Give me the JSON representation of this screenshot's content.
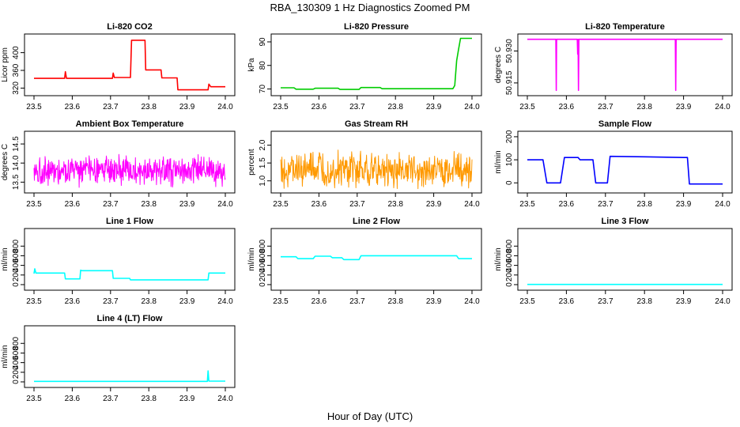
{
  "figure": {
    "title": "RBA_130309  1 Hz Diagnostics Zoomed PM",
    "xlabel": "Hour of Day (UTC)"
  },
  "chart_data": [
    {
      "type": "line",
      "title": "Li-820 CO2",
      "ylabel": "Licor ppm",
      "color": "#ff0000",
      "xlim": [
        23.5,
        24.0
      ],
      "ylim": [
        310,
        435
      ],
      "x_ticks": [
        "23.5",
        "23.6",
        "23.7",
        "23.8",
        "23.9",
        "24.0"
      ],
      "y_ticks": [
        "320",
        "360",
        "400"
      ],
      "series": [
        {
          "points": [
            [
              23.5,
              342
            ],
            [
              23.58,
              342
            ],
            [
              23.582,
              357
            ],
            [
              23.585,
              342
            ],
            [
              23.705,
              342
            ],
            [
              23.707,
              354
            ],
            [
              23.71,
              344
            ],
            [
              23.752,
              344
            ],
            [
              23.755,
              428
            ],
            [
              23.79,
              428
            ],
            [
              23.792,
              361
            ],
            [
              23.832,
              361
            ],
            [
              23.834,
              343
            ],
            [
              23.874,
              343
            ],
            [
              23.876,
              316
            ],
            [
              23.955,
              316
            ],
            [
              23.957,
              329
            ],
            [
              23.962,
              323
            ],
            [
              24.0,
              323
            ]
          ]
        }
      ]
    },
    {
      "type": "line",
      "title": "Li-820 Pressure",
      "ylabel": "kPa",
      "color": "#00cc00",
      "xlim": [
        23.5,
        24.0
      ],
      "ylim": [
        68.5,
        92
      ],
      "x_ticks": [
        "23.5",
        "23.6",
        "23.7",
        "23.8",
        "23.9",
        "24.0"
      ],
      "y_ticks": [
        "70",
        "80",
        "90"
      ],
      "series": [
        {
          "points": [
            [
              23.5,
              70.5
            ],
            [
              23.535,
              70.5
            ],
            [
              23.54,
              69.9
            ],
            [
              23.585,
              69.9
            ],
            [
              23.59,
              70.3
            ],
            [
              23.65,
              70.3
            ],
            [
              23.655,
              69.8
            ],
            [
              23.705,
              69.8
            ],
            [
              23.71,
              70.6
            ],
            [
              23.76,
              70.6
            ],
            [
              23.765,
              70.1
            ],
            [
              23.95,
              70.1
            ],
            [
              23.955,
              71.5
            ],
            [
              23.96,
              82
            ],
            [
              23.965,
              87
            ],
            [
              23.97,
              91.5
            ],
            [
              24.0,
              91.5
            ]
          ]
        }
      ]
    },
    {
      "type": "line",
      "title": "Li-820 Temperature",
      "ylabel": "degrees C",
      "color": "#ff00ff",
      "xlim": [
        23.5,
        24.0
      ],
      "ylim": [
        50.9105,
        50.9365
      ],
      "x_ticks": [
        "23.5",
        "23.6",
        "23.7",
        "23.8",
        "23.9",
        "24.0"
      ],
      "y_ticks": [
        "50.915",
        "50.930"
      ],
      "series": [
        {
          "points": [
            [
              23.5,
              50.9355
            ],
            [
              23.573,
              50.9355
            ],
            [
              23.574,
              50.9115
            ],
            [
              23.575,
              50.9355
            ],
            [
              23.628,
              50.9355
            ],
            [
              23.629,
              50.9285
            ],
            [
              23.63,
              50.9355
            ],
            [
              23.631,
              50.9115
            ],
            [
              23.632,
              50.9355
            ],
            [
              23.879,
              50.9355
            ],
            [
              23.88,
              50.9115
            ],
            [
              23.881,
              50.9355
            ],
            [
              24.0,
              50.9355
            ]
          ]
        }
      ]
    },
    {
      "type": "line",
      "title": "Ambient Box Temperature",
      "ylabel": "degrees C",
      "color": "#ff00ff",
      "xlim": [
        23.5,
        24.0
      ],
      "ylim": [
        13.3,
        14.75
      ],
      "x_ticks": [
        "23.5",
        "23.6",
        "23.7",
        "23.8",
        "23.9",
        "24.0"
      ],
      "y_ticks": [
        "13.5",
        "14.0",
        "14.5"
      ],
      "series": [
        {
          "noise": {
            "base": 13.8,
            "amp": 0.45,
            "n": 500
          }
        }
      ]
    },
    {
      "type": "line",
      "title": "Gas Stream RH",
      "ylabel": "percent",
      "color": "#ff9900",
      "xlim": [
        23.5,
        24.0
      ],
      "ylim": [
        0.75,
        2.3
      ],
      "x_ticks": [
        "23.5",
        "23.6",
        "23.7",
        "23.8",
        "23.9",
        "24.0"
      ],
      "y_ticks": [
        "1.0",
        "1.5",
        "2.0"
      ],
      "series": [
        {
          "noise": {
            "base": 1.3,
            "amp": 0.6,
            "n": 450
          }
        }
      ]
    },
    {
      "type": "line",
      "title": "Sample Flow",
      "ylabel": "ml/min",
      "color": "#0000ff",
      "xlim": [
        23.5,
        24.0
      ],
      "ylim": [
        -30,
        210
      ],
      "x_ticks": [
        "23.5",
        "23.6",
        "23.7",
        "23.8",
        "23.9",
        "24.0"
      ],
      "y_ticks": [
        "0",
        "100",
        "200"
      ],
      "series": [
        {
          "points": [
            [
              23.5,
              100
            ],
            [
              23.54,
              100
            ],
            [
              23.55,
              0
            ],
            [
              23.585,
              0
            ],
            [
              23.595,
              110
            ],
            [
              23.63,
              110
            ],
            [
              23.635,
              100
            ],
            [
              23.668,
              100
            ],
            [
              23.675,
              0
            ],
            [
              23.705,
              0
            ],
            [
              23.712,
              115
            ],
            [
              23.8,
              113
            ],
            [
              23.9,
              110
            ],
            [
              23.91,
              110
            ],
            [
              23.915,
              -5
            ],
            [
              24.0,
              -5
            ]
          ]
        }
      ]
    },
    {
      "type": "line",
      "title": "Line 1 Flow",
      "ylabel": "ml/min",
      "color": "#00ffff",
      "xlim": [
        23.5,
        24.0
      ],
      "ylim": [
        -50,
        1100
      ],
      "x_ticks": [
        "23.5",
        "23.6",
        "23.7",
        "23.8",
        "23.9",
        "24.0"
      ],
      "y_ticks": [
        "0",
        "200",
        "400",
        "600",
        "800"
      ],
      "series": [
        {
          "points": [
            [
              23.5,
              230
            ],
            [
              23.502,
              330
            ],
            [
              23.505,
              240
            ],
            [
              23.58,
              240
            ],
            [
              23.582,
              120
            ],
            [
              23.62,
              120
            ],
            [
              23.622,
              300
            ],
            [
              23.625,
              290
            ],
            [
              23.705,
              290
            ],
            [
              23.707,
              130
            ],
            [
              23.75,
              130
            ],
            [
              23.752,
              100
            ],
            [
              23.955,
              100
            ],
            [
              23.957,
              240
            ],
            [
              24.0,
              240
            ]
          ]
        }
      ]
    },
    {
      "type": "line",
      "title": "Line 2 Flow",
      "ylabel": "ml/min",
      "color": "#00ffff",
      "xlim": [
        23.5,
        24.0
      ],
      "ylim": [
        -50,
        1100
      ],
      "x_ticks": [
        "23.5",
        "23.6",
        "23.7",
        "23.8",
        "23.9",
        "24.0"
      ],
      "y_ticks": [
        "0",
        "200",
        "400",
        "600",
        "800"
      ],
      "series": [
        {
          "points": [
            [
              23.5,
              580
            ],
            [
              23.54,
              580
            ],
            [
              23.545,
              540
            ],
            [
              23.585,
              540
            ],
            [
              23.59,
              590
            ],
            [
              23.63,
              590
            ],
            [
              23.635,
              560
            ],
            [
              23.66,
              560
            ],
            [
              23.665,
              520
            ],
            [
              23.705,
              520
            ],
            [
              23.71,
              600
            ],
            [
              23.96,
              600
            ],
            [
              23.965,
              540
            ],
            [
              24.0,
              540
            ]
          ]
        }
      ]
    },
    {
      "type": "line",
      "title": "Line 3 Flow",
      "ylabel": "ml/min",
      "color": "#00ffff",
      "xlim": [
        23.5,
        24.0
      ],
      "ylim": [
        -50,
        1100
      ],
      "x_ticks": [
        "23.5",
        "23.6",
        "23.7",
        "23.8",
        "23.9",
        "24.0"
      ],
      "y_ticks": [
        "0",
        "200",
        "400",
        "600",
        "800"
      ],
      "series": [
        {
          "points": [
            [
              23.5,
              5
            ],
            [
              24.0,
              5
            ]
          ]
        }
      ]
    },
    {
      "type": "line",
      "title": "Line 4 (LT) Flow",
      "ylabel": "ml/min",
      "color": "#00ffff",
      "xlim": [
        23.5,
        24.0
      ],
      "ylim": [
        -50,
        1100
      ],
      "x_ticks": [
        "23.5",
        "23.6",
        "23.7",
        "23.8",
        "23.9",
        "24.0"
      ],
      "y_ticks": [
        "0",
        "200",
        "400",
        "600",
        "800"
      ],
      "series": [
        {
          "points": [
            [
              23.5,
              10
            ],
            [
              23.953,
              10
            ],
            [
              23.955,
              230
            ],
            [
              23.957,
              15
            ],
            [
              24.0,
              15
            ]
          ]
        }
      ]
    }
  ]
}
